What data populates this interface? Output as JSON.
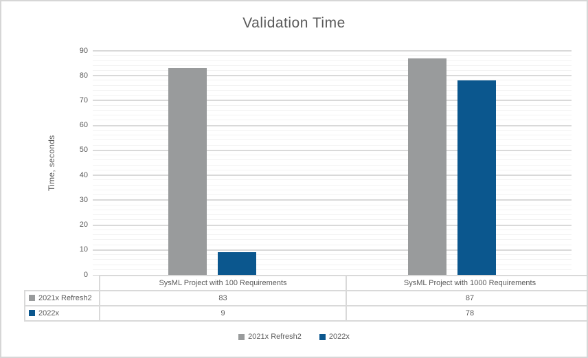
{
  "chart_data": {
    "type": "bar",
    "title": "Validation Time",
    "xlabel": "",
    "ylabel": "Time, seconds",
    "categories": [
      "SysML Project with 100 Requirements",
      "SysML Project with 1000 Requirements"
    ],
    "series": [
      {
        "name": "2021x Refresh2",
        "color": "#999b9c",
        "values": [
          83,
          87
        ]
      },
      {
        "name": "2022x",
        "color": "#0b578e",
        "values": [
          9,
          78
        ]
      }
    ],
    "ylim": [
      0,
      90
    ],
    "yticks": [
      0,
      10,
      20,
      30,
      40,
      50,
      60,
      70,
      80,
      90
    ],
    "y_minor_unit": 2,
    "y_major_unit": 10,
    "grid": "on",
    "legend_position": "bottom",
    "data_table_shown": true
  },
  "colors": {
    "text": "#595959",
    "grid_minor": "#f2f2f2",
    "grid_major": "#d9d9d9",
    "table_border": "#d9d9d9",
    "frame_border": "#d6d6d6",
    "background": "#ffffff"
  }
}
